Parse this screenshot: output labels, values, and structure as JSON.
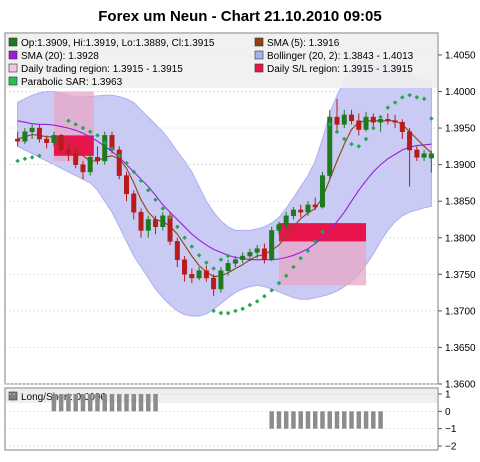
{
  "chart_data": [
    {
      "type": "candlestick",
      "title": "Forex um Neun - Chart 21.10.2010 09:05",
      "ylim": [
        1.36,
        1.408
      ],
      "yticks": [
        {
          "value": 1.405,
          "label": "1.4050"
        },
        {
          "value": 1.4,
          "label": "1.4000"
        },
        {
          "value": 1.395,
          "label": "1.3950"
        },
        {
          "value": 1.39,
          "label": "1.3900"
        },
        {
          "value": 1.385,
          "label": "1.3850"
        },
        {
          "value": 1.38,
          "label": "1.3800"
        },
        {
          "value": 1.375,
          "label": "1.3750"
        },
        {
          "value": 1.37,
          "label": "1.3700"
        },
        {
          "value": 1.365,
          "label": "1.3650"
        },
        {
          "value": 1.36,
          "label": "1.3600"
        }
      ],
      "grid": true,
      "legend": [
        {
          "text": "Op:1.3909, Hi:1.3919, Lo:1.3889, Cl:1.3915",
          "color": "#1f7a1f"
        },
        {
          "text": "SMA (5): 1.3916",
          "color": "#8b4513"
        },
        {
          "text": "SMA (20): 1.3928",
          "color": "#9a1fd6"
        },
        {
          "text": "Bollinger (20, 2): 1.3843 - 1.4013",
          "color": "#aab0f0"
        },
        {
          "text": "Daily trading region: 1.3915 - 1.3915",
          "color": "#f0c8dc"
        },
        {
          "text": "Daily S/L region: 1.3915 - 1.3915",
          "color": "#e8154d"
        },
        {
          "text": "Parabolic SAR: 1.3963",
          "color": "#22c055"
        }
      ],
      "candles": [
        [
          1.3935,
          1.3945,
          1.3925,
          1.3932
        ],
        [
          1.3932,
          1.395,
          1.3928,
          1.3945
        ],
        [
          1.3945,
          1.3955,
          1.3935,
          1.395
        ],
        [
          1.395,
          1.3955,
          1.393,
          1.3935
        ],
        [
          1.3935,
          1.394,
          1.3922,
          1.393
        ],
        [
          1.393,
          1.3945,
          1.3925,
          1.394
        ],
        [
          1.394,
          1.3942,
          1.3915,
          1.392
        ],
        [
          1.392,
          1.3928,
          1.3905,
          1.3915
        ],
        [
          1.3915,
          1.392,
          1.3895,
          1.39
        ],
        [
          1.39,
          1.3905,
          1.388,
          1.389
        ],
        [
          1.389,
          1.3915,
          1.3885,
          1.391
        ],
        [
          1.391,
          1.3925,
          1.39,
          1.3905
        ],
        [
          1.3905,
          1.3945,
          1.39,
          1.394
        ],
        [
          1.394,
          1.3945,
          1.3915,
          1.392
        ],
        [
          1.392,
          1.3925,
          1.388,
          1.3885
        ],
        [
          1.3885,
          1.389,
          1.385,
          1.386
        ],
        [
          1.386,
          1.3865,
          1.3825,
          1.3835
        ],
        [
          1.3835,
          1.384,
          1.38,
          1.381
        ],
        [
          1.381,
          1.383,
          1.38,
          1.3825
        ],
        [
          1.3825,
          1.383,
          1.3805,
          1.3815
        ],
        [
          1.3815,
          1.3835,
          1.381,
          1.383
        ],
        [
          1.383,
          1.3835,
          1.379,
          1.3795
        ],
        [
          1.3795,
          1.38,
          1.376,
          1.377
        ],
        [
          1.377,
          1.3775,
          1.374,
          1.375
        ],
        [
          1.375,
          1.3758,
          1.3738,
          1.3745
        ],
        [
          1.3745,
          1.376,
          1.3742,
          1.3755
        ],
        [
          1.3755,
          1.3762,
          1.374,
          1.3745
        ],
        [
          1.3745,
          1.375,
          1.372,
          1.373
        ],
        [
          1.373,
          1.376,
          1.3725,
          1.3755
        ],
        [
          1.3755,
          1.377,
          1.3748,
          1.3765
        ],
        [
          1.3765,
          1.3775,
          1.376,
          1.377
        ],
        [
          1.377,
          1.378,
          1.3765,
          1.3775
        ],
        [
          1.3775,
          1.3785,
          1.3768,
          1.378
        ],
        [
          1.378,
          1.379,
          1.3772,
          1.3785
        ],
        [
          1.3785,
          1.3792,
          1.3765,
          1.377
        ],
        [
          1.377,
          1.3815,
          1.3768,
          1.381
        ],
        [
          1.381,
          1.3822,
          1.3805,
          1.3818
        ],
        [
          1.3818,
          1.3835,
          1.3812,
          1.383
        ],
        [
          1.383,
          1.3842,
          1.3825,
          1.3838
        ],
        [
          1.3838,
          1.3845,
          1.3828,
          1.3835
        ],
        [
          1.3835,
          1.385,
          1.383,
          1.3845
        ],
        [
          1.3845,
          1.3855,
          1.3838,
          1.3842
        ],
        [
          1.3842,
          1.389,
          1.384,
          1.3885
        ],
        [
          1.3885,
          1.3975,
          1.388,
          1.3965
        ],
        [
          1.3965,
          1.399,
          1.3945,
          1.3955
        ],
        [
          1.3955,
          1.3975,
          1.395,
          1.3968
        ],
        [
          1.3968,
          1.3975,
          1.3955,
          1.396
        ],
        [
          1.396,
          1.397,
          1.394,
          1.3948
        ],
        [
          1.3948,
          1.3972,
          1.3945,
          1.3965
        ],
        [
          1.3965,
          1.397,
          1.395,
          1.3958
        ],
        [
          1.3958,
          1.3965,
          1.3945,
          1.3962
        ],
        [
          1.3962,
          1.397,
          1.3955,
          1.396
        ],
        [
          1.396,
          1.3968,
          1.395,
          1.3958
        ],
        [
          1.3958,
          1.3962,
          1.3935,
          1.3945
        ],
        [
          1.3945,
          1.395,
          1.387,
          1.392
        ],
        [
          1.392,
          1.3925,
          1.3905,
          1.391
        ],
        [
          1.391,
          1.392,
          1.3905,
          1.3915
        ],
        [
          1.3909,
          1.3919,
          1.3889,
          1.3915
        ]
      ],
      "sma5": [
        1.3935,
        1.3938,
        1.3941,
        1.394,
        1.3938,
        1.3938,
        1.3935,
        1.3928,
        1.392,
        1.3912,
        1.3905,
        1.3905,
        1.391,
        1.3912,
        1.3908,
        1.3895,
        1.3875,
        1.3852,
        1.3835,
        1.3825,
        1.3822,
        1.3816,
        1.3805,
        1.379,
        1.3775,
        1.3762,
        1.3753,
        1.3747,
        1.3748,
        1.3752,
        1.3758,
        1.3763,
        1.377,
        1.3775,
        1.3777,
        1.3783,
        1.379,
        1.3802,
        1.3815,
        1.3826,
        1.3834,
        1.384,
        1.3855,
        1.388,
        1.3905,
        1.3928,
        1.3948,
        1.3958,
        1.396,
        1.396,
        1.396,
        1.396,
        1.396,
        1.3955,
        1.3945,
        1.3935,
        1.3925,
        1.3916
      ],
      "sma20": [
        1.396,
        1.3958,
        1.3956,
        1.3955,
        1.3955,
        1.3954,
        1.3952,
        1.395,
        1.3947,
        1.3943,
        1.3938,
        1.3932,
        1.3925,
        1.3918,
        1.391,
        1.39,
        1.389,
        1.388,
        1.387,
        1.3858,
        1.3845,
        1.3835,
        1.3825,
        1.3815,
        1.3805,
        1.3797,
        1.379,
        1.3784,
        1.378,
        1.3776,
        1.3773,
        1.3772,
        1.377,
        1.377,
        1.377,
        1.377,
        1.3771,
        1.3773,
        1.3776,
        1.378,
        1.3785,
        1.3792,
        1.38,
        1.381,
        1.3822,
        1.3835,
        1.385,
        1.3865,
        1.3878,
        1.389,
        1.39,
        1.3908,
        1.3914,
        1.392,
        1.3924,
        1.3926,
        1.3927,
        1.3928
      ],
      "boll_upper": [
        1.3985,
        1.399,
        1.3995,
        1.3998,
        1.4,
        1.4,
        1.3998,
        1.3995,
        1.3993,
        1.3992,
        1.3993,
        1.3994,
        1.3995,
        1.3995,
        1.3993,
        1.399,
        1.3985,
        1.3975,
        1.3965,
        1.3955,
        1.3945,
        1.3932,
        1.3918,
        1.3905,
        1.389,
        1.387,
        1.385,
        1.3835,
        1.3823,
        1.3815,
        1.381,
        1.381,
        1.381,
        1.3812,
        1.3815,
        1.382,
        1.3828,
        1.384,
        1.3855,
        1.387,
        1.3885,
        1.3905,
        1.3935,
        1.397,
        1.3995,
        1.4015,
        1.403,
        1.404,
        1.4045,
        1.4045,
        1.4043,
        1.404,
        1.4035,
        1.403,
        1.4025,
        1.402,
        1.4016,
        1.4013
      ],
      "boll_lower": [
        1.3925,
        1.392,
        1.3915,
        1.391,
        1.3905,
        1.39,
        1.3895,
        1.389,
        1.3885,
        1.388,
        1.3875,
        1.3865,
        1.385,
        1.3835,
        1.3815,
        1.3795,
        1.3775,
        1.376,
        1.3745,
        1.373,
        1.3718,
        1.3708,
        1.37,
        1.3695,
        1.3693,
        1.3693,
        1.3696,
        1.3702,
        1.371,
        1.3718,
        1.3725,
        1.373,
        1.3733,
        1.3735,
        1.3733,
        1.373,
        1.3726,
        1.3722,
        1.3718,
        1.3716,
        1.3716,
        1.3718,
        1.372,
        1.3723,
        1.3727,
        1.3733,
        1.374,
        1.375,
        1.3763,
        1.3778,
        1.3795,
        1.381,
        1.3822,
        1.383,
        1.3835,
        1.3838,
        1.3841,
        1.3843
      ],
      "sar": [
        [
          0,
          1.3905
        ],
        [
          1,
          1.3908
        ],
        [
          2,
          1.391
        ],
        [
          3,
          1.3912
        ],
        [
          7,
          1.396
        ],
        [
          8,
          1.3955
        ],
        [
          9,
          1.395
        ],
        [
          10,
          1.3945
        ],
        [
          11,
          1.394
        ],
        [
          12,
          1.393
        ],
        [
          13,
          1.3922
        ],
        [
          14,
          1.3912
        ],
        [
          15,
          1.3902
        ],
        [
          16,
          1.389
        ],
        [
          17,
          1.3878
        ],
        [
          18,
          1.3865
        ],
        [
          19,
          1.3852
        ],
        [
          20,
          1.384
        ],
        [
          21,
          1.3828
        ],
        [
          22,
          1.3815
        ],
        [
          23,
          1.38
        ],
        [
          24,
          1.3788
        ],
        [
          25,
          1.3776
        ],
        [
          26,
          1.3766
        ],
        [
          27,
          1.3758
        ],
        [
          28,
          1.377
        ],
        [
          29,
          1.3775
        ],
        [
          27,
          1.37
        ],
        [
          28,
          1.3697
        ],
        [
          29,
          1.3697
        ],
        [
          30,
          1.37
        ],
        [
          31,
          1.3703
        ],
        [
          32,
          1.3708
        ],
        [
          33,
          1.3713
        ],
        [
          34,
          1.372
        ],
        [
          35,
          1.3728
        ],
        [
          36,
          1.3738
        ],
        [
          37,
          1.3748
        ],
        [
          38,
          1.376
        ],
        [
          39,
          1.3772
        ],
        [
          40,
          1.3782
        ],
        [
          41,
          1.3795
        ],
        [
          42,
          1.3808
        ],
        [
          43,
          1.3955
        ],
        [
          44,
          1.3945
        ],
        [
          45,
          1.3935
        ],
        [
          46,
          1.3928
        ],
        [
          47,
          1.3925
        ],
        [
          48,
          1.3935
        ],
        [
          49,
          1.395
        ],
        [
          50,
          1.3965
        ],
        [
          51,
          1.3978
        ],
        [
          52,
          1.3985
        ],
        [
          53,
          1.3992
        ],
        [
          54,
          1.3995
        ],
        [
          55,
          1.3992
        ],
        [
          56,
          1.399
        ],
        [
          57,
          1.3963
        ]
      ],
      "trading_regions": [
        {
          "from": 5.0,
          "to": 10.5,
          "high": 1.4,
          "low": 1.3905
        },
        {
          "from": 36.0,
          "to": 48.0,
          "high": 1.382,
          "low": 1.3735
        }
      ],
      "sl_regions": [
        {
          "from": 5.0,
          "to": 10.5,
          "high": 1.394,
          "low": 1.3912
        },
        {
          "from": 36.0,
          "to": 48.0,
          "high": 1.382,
          "low": 1.3795
        }
      ]
    },
    {
      "type": "bar",
      "legend": "Long/Short: 0.0000",
      "ylim": [
        -2,
        1
      ],
      "yticks": [
        {
          "value": 1,
          "label": "1"
        },
        {
          "value": 0,
          "label": "0"
        },
        {
          "value": -1,
          "label": "−1"
        },
        {
          "value": -2,
          "label": "−2"
        }
      ],
      "bars": [
        {
          "from": 5,
          "to": 19,
          "value": 1
        },
        {
          "from": 35,
          "to": 50,
          "value": -1
        }
      ]
    }
  ]
}
